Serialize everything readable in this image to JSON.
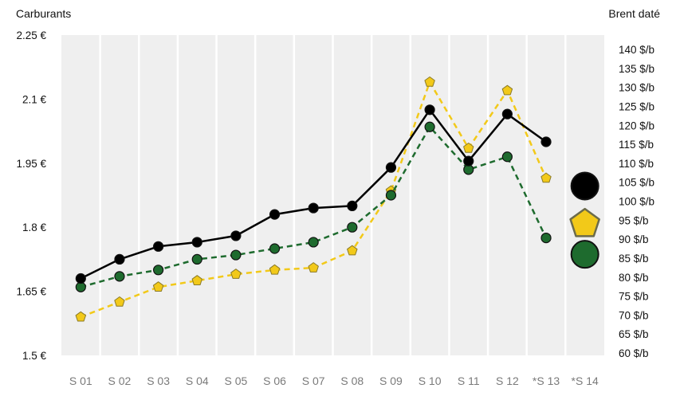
{
  "chart_data": {
    "type": "line",
    "left_axis_title": "Carburants",
    "right_axis_title": "Brent daté",
    "categories": [
      "S 01",
      "S 02",
      "S 03",
      "S 04",
      "S 05",
      "S 06",
      "S 07",
      "S 08",
      "S 09",
      "S 10",
      "S 11",
      "S 12",
      "*S 13",
      "*S 14"
    ],
    "left_axis": {
      "ylim": [
        1.5,
        2.25
      ],
      "ticks": [
        1.5,
        1.65,
        1.8,
        1.95,
        2.1,
        2.25
      ],
      "tick_labels": [
        "1.5 €",
        "1.65 €",
        "1.8 €",
        "1.95 €",
        "2.1 €",
        "2.25 €"
      ]
    },
    "right_axis": {
      "ylim": [
        60,
        145
      ],
      "ticks": [
        60,
        65,
        70,
        75,
        80,
        85,
        90,
        95,
        100,
        105,
        110,
        115,
        120,
        125,
        130,
        135,
        140
      ],
      "tick_labels": [
        "60 $/b",
        "65 $/b",
        "70 $/b",
        "75 $/b",
        "80 $/b",
        "85 $/b",
        "90 $/b",
        "95 $/b",
        "100 $/b",
        "105 $/b",
        "110 $/b",
        "115 $/b",
        "120 $/b",
        "125 $/b",
        "130 $/b",
        "135 $/b",
        "140 $/b"
      ]
    },
    "series": [
      {
        "axis": "left",
        "marker": "circle",
        "line": "solid",
        "color": "#000000",
        "values": [
          1.68,
          1.725,
          1.755,
          1.765,
          1.78,
          1.83,
          1.845,
          1.85,
          1.94,
          2.075,
          1.955,
          2.065,
          2.0,
          null
        ]
      },
      {
        "axis": "left",
        "marker": "pentagon",
        "line": "dashed",
        "color": "#f2c919",
        "values": [
          1.59,
          1.625,
          1.66,
          1.675,
          1.69,
          1.7,
          1.705,
          1.745,
          1.885,
          2.14,
          1.985,
          2.12,
          1.915,
          null
        ]
      },
      {
        "axis": "left",
        "marker": "circle",
        "line": "dashed",
        "color": "#1e6b2e",
        "values": [
          1.66,
          1.685,
          1.7,
          1.725,
          1.735,
          1.75,
          1.765,
          1.8,
          1.875,
          2.035,
          1.935,
          1.965,
          1.775,
          null
        ]
      },
      {
        "axis": "right",
        "marker": "circle",
        "color": "#000000",
        "large": true,
        "values": [
          null,
          null,
          null,
          null,
          null,
          null,
          null,
          null,
          null,
          null,
          null,
          null,
          null,
          104
        ]
      },
      {
        "axis": "right",
        "marker": "pentagon",
        "color": "#f2c919",
        "large": true,
        "values": [
          null,
          null,
          null,
          null,
          null,
          null,
          null,
          null,
          null,
          null,
          null,
          null,
          null,
          94
        ]
      },
      {
        "axis": "right",
        "marker": "circle",
        "color": "#1e6b2e",
        "large": true,
        "values": [
          null,
          null,
          null,
          null,
          null,
          null,
          null,
          null,
          null,
          null,
          null,
          null,
          null,
          86
        ]
      }
    ],
    "grid": "vertical",
    "plot_background": "#efefef"
  }
}
